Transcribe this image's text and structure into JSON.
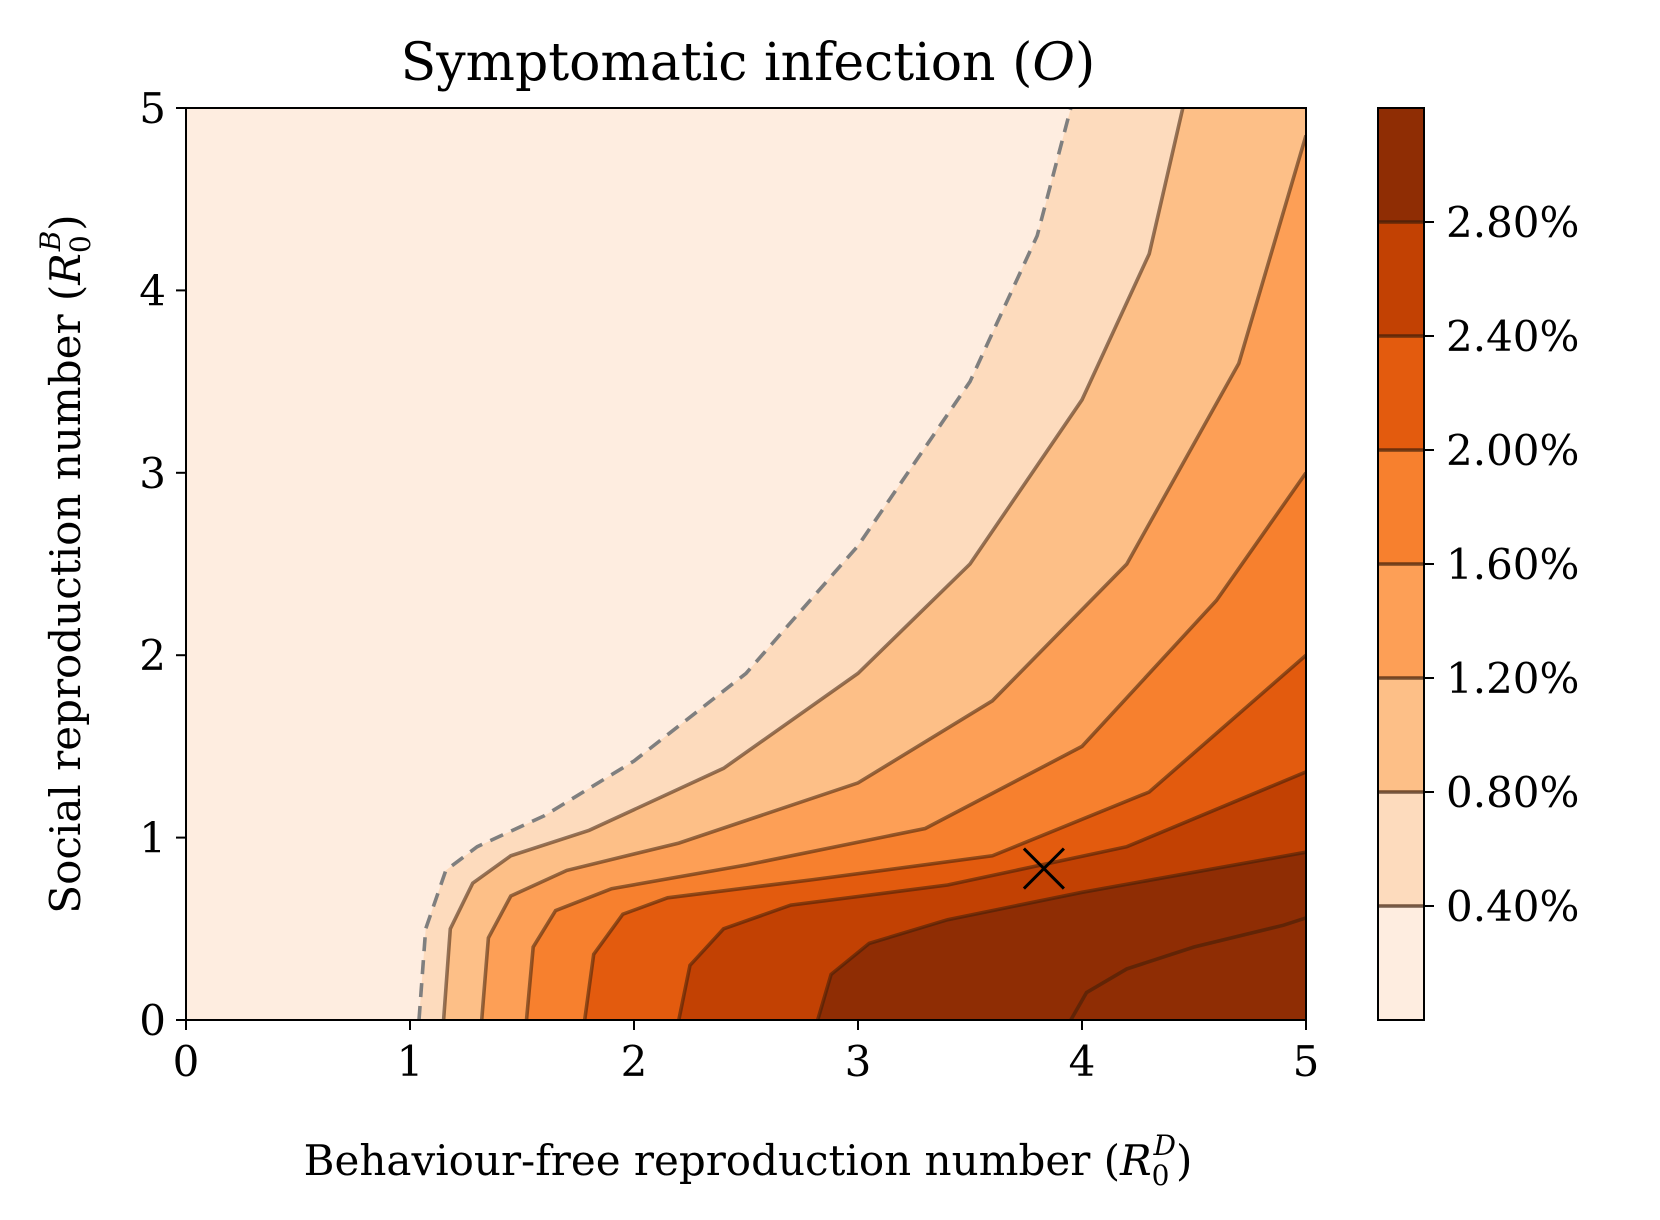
{
  "chart_data": {
    "type": "contourf",
    "title_text": "Symptomatic infection (",
    "title_var": "O",
    "title_close": ")",
    "xlabel_text": "Behaviour-free reproduction number (",
    "xlabel_sym": "R",
    "xlabel_sub": "0",
    "xlabel_sup": "D",
    "xlabel_close": ")",
    "ylabel_text": "Social reproduction number (",
    "ylabel_sym": "R",
    "ylabel_sub": "0",
    "ylabel_sup": "B",
    "ylabel_close": ")",
    "xlim": [
      0,
      5
    ],
    "ylim": [
      0,
      5
    ],
    "xticks": [
      "0",
      "1",
      "2",
      "3",
      "4",
      "5"
    ],
    "yticks": [
      "0",
      "1",
      "2",
      "3",
      "4",
      "5"
    ],
    "colorbar": {
      "ticks": [
        "0.40%",
        "0.80%",
        "1.20%",
        "1.60%",
        "2.00%",
        "2.40%",
        "2.80%"
      ],
      "tick_values": [
        0.4,
        0.8,
        1.2,
        1.6,
        2.0,
        2.4,
        2.8
      ],
      "min": 0.0,
      "max": 3.2,
      "levels": [
        0.0,
        0.2,
        0.4,
        0.6,
        0.8,
        1.0,
        1.2,
        1.4,
        1.6,
        1.8,
        2.0,
        2.2,
        2.4,
        2.6,
        2.8,
        3.0,
        3.2
      ],
      "colors": [
        "#feede0",
        "#fddbbd",
        "#fdbf87",
        "#fd9f56",
        "#f7802e",
        "#e35b0e",
        "#c24103",
        "#8f2d04"
      ]
    },
    "contours": [
      {
        "level": 0.0,
        "style": "dashed",
        "points": [
          [
            1.04,
            0
          ],
          [
            1.07,
            0.5
          ],
          [
            1.16,
            0.82
          ],
          [
            1.3,
            0.95
          ],
          [
            1.6,
            1.12
          ],
          [
            2.0,
            1.42
          ],
          [
            2.5,
            1.9
          ],
          [
            3.0,
            2.6
          ],
          [
            3.5,
            3.5
          ],
          [
            3.8,
            4.3
          ],
          [
            3.95,
            5.0
          ]
        ]
      },
      {
        "level": 0.4,
        "points": [
          [
            1.15,
            0
          ],
          [
            1.18,
            0.5
          ],
          [
            1.28,
            0.75
          ],
          [
            1.45,
            0.9
          ],
          [
            1.8,
            1.04
          ],
          [
            2.4,
            1.38
          ],
          [
            3.0,
            1.9
          ],
          [
            3.5,
            2.5
          ],
          [
            4.0,
            3.4
          ],
          [
            4.3,
            4.2
          ],
          [
            4.45,
            5.0
          ]
        ]
      },
      {
        "level": 0.8,
        "points": [
          [
            1.32,
            0
          ],
          [
            1.35,
            0.45
          ],
          [
            1.45,
            0.68
          ],
          [
            1.7,
            0.82
          ],
          [
            2.2,
            0.97
          ],
          [
            3.0,
            1.3
          ],
          [
            3.6,
            1.75
          ],
          [
            4.2,
            2.5
          ],
          [
            4.7,
            3.6
          ],
          [
            5.0,
            4.85
          ]
        ]
      },
      {
        "level": 1.2,
        "points": [
          [
            1.52,
            0
          ],
          [
            1.55,
            0.4
          ],
          [
            1.65,
            0.6
          ],
          [
            1.9,
            0.72
          ],
          [
            2.5,
            0.85
          ],
          [
            3.3,
            1.05
          ],
          [
            4.0,
            1.5
          ],
          [
            4.6,
            2.3
          ],
          [
            5.0,
            3.0
          ]
        ]
      },
      {
        "level": 1.6,
        "points": [
          [
            1.78,
            0
          ],
          [
            1.82,
            0.36
          ],
          [
            1.95,
            0.58
          ],
          [
            2.15,
            0.67
          ],
          [
            2.8,
            0.77
          ],
          [
            3.6,
            0.9
          ],
          [
            4.3,
            1.25
          ],
          [
            5.0,
            2.0
          ]
        ]
      },
      {
        "level": 2.0,
        "points": [
          [
            2.2,
            0
          ],
          [
            2.25,
            0.3
          ],
          [
            2.4,
            0.5
          ],
          [
            2.7,
            0.63
          ],
          [
            3.4,
            0.74
          ],
          [
            4.2,
            0.95
          ],
          [
            5.0,
            1.36
          ]
        ]
      },
      {
        "level": 2.4,
        "points": [
          [
            2.82,
            0
          ],
          [
            2.88,
            0.25
          ],
          [
            3.05,
            0.42
          ],
          [
            3.4,
            0.55
          ],
          [
            4.0,
            0.7
          ],
          [
            5.0,
            0.92
          ]
        ]
      },
      {
        "level": 2.8,
        "points": [
          [
            3.95,
            0
          ],
          [
            4.02,
            0.15
          ],
          [
            4.2,
            0.28
          ],
          [
            4.5,
            0.4
          ],
          [
            4.9,
            0.52
          ],
          [
            5.0,
            0.56
          ]
        ]
      }
    ],
    "marker": {
      "symbol": "x",
      "x": 3.83,
      "y": 0.83
    }
  }
}
